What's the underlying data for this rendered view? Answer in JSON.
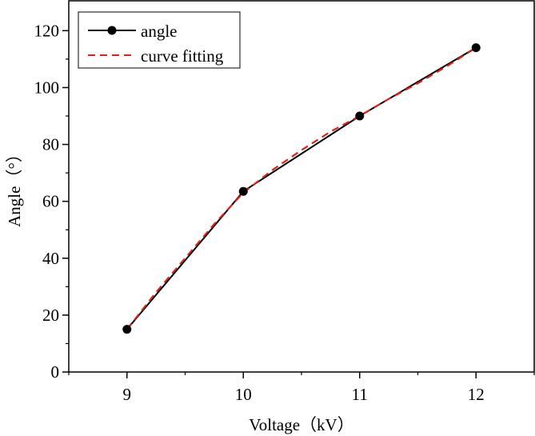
{
  "chart_data": {
    "type": "line",
    "title": "",
    "xlabel": "Voltage（kV）",
    "ylabel": "Angle（°）",
    "xlim": [
      8.5,
      12.5
    ],
    "ylim": [
      0,
      130.5
    ],
    "xticks": [
      9,
      10,
      11,
      12
    ],
    "xtick_labels": [
      "9",
      "10",
      "11",
      "12"
    ],
    "yticks": [
      0,
      20,
      40,
      60,
      80,
      100,
      120
    ],
    "ytick_labels": [
      "0",
      "20",
      "40",
      "60",
      "80",
      "100",
      "120"
    ],
    "grid": false,
    "legend_position": "top-left",
    "series": [
      {
        "name": "angle",
        "style": "solid-line-with-markers",
        "color": "#000000",
        "x": [
          9,
          10,
          11,
          12
        ],
        "y": [
          15,
          63.5,
          90,
          114
        ]
      },
      {
        "name": "curve fitting",
        "style": "dashed",
        "color": "#e0201b",
        "x": [
          9,
          9.25,
          9.5,
          9.75,
          10,
          10.25,
          10.5,
          10.75,
          11,
          11.25,
          11.5,
          11.75,
          12
        ],
        "y": [
          15,
          28,
          40,
          52,
          63,
          71,
          78,
          84.5,
          90,
          96,
          101.5,
          107.5,
          114
        ]
      }
    ]
  }
}
